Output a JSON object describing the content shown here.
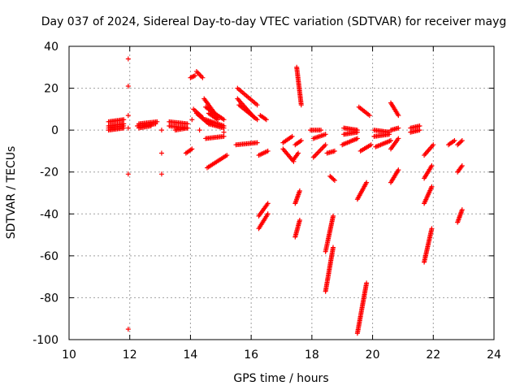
{
  "chart_data": {
    "type": "scatter",
    "title": "Day 037 of 2024, Sidereal Day-to-day VTEC variation (SDTVAR) for receiver mayg",
    "xlabel": "GPS time / hours",
    "ylabel": "SDTVAR / TECUs",
    "xlim": [
      10,
      24
    ],
    "ylim": [
      -100,
      40
    ],
    "xticks": [
      10,
      12,
      14,
      16,
      18,
      20,
      22,
      24
    ],
    "yticks": [
      -100,
      -80,
      -60,
      -40,
      -20,
      0,
      20,
      40
    ],
    "xtick_labels": [
      "10",
      "12",
      "14",
      "16",
      "18",
      "20",
      "22",
      "24"
    ],
    "ytick_labels": [
      "-100",
      "-80",
      "-60",
      "-40",
      "-20",
      "0",
      "20",
      "40"
    ],
    "grid": true,
    "marker": "+",
    "color": "#ff0000",
    "segments": [
      {
        "x0": 11.3,
        "y0": 2,
        "x1": 11.8,
        "y1": 3
      },
      {
        "x0": 11.3,
        "y0": 4,
        "x1": 11.8,
        "y1": 5
      },
      {
        "x0": 11.3,
        "y0": 1,
        "x1": 11.8,
        "y1": 2
      },
      {
        "x0": 11.3,
        "y0": 0,
        "x1": 11.8,
        "y1": 1
      },
      {
        "x0": 12.25,
        "y0": 2,
        "x1": 12.85,
        "y1": 3
      },
      {
        "x0": 12.3,
        "y0": 3,
        "x1": 12.9,
        "y1": 4
      },
      {
        "x0": 12.3,
        "y0": 1,
        "x1": 12.7,
        "y1": 2
      },
      {
        "x0": 13.3,
        "y0": 2,
        "x1": 13.9,
        "y1": 1
      },
      {
        "x0": 13.3,
        "y0": 4,
        "x1": 13.9,
        "y1": 3
      },
      {
        "x0": 13.5,
        "y0": 0,
        "x1": 13.9,
        "y1": 1
      },
      {
        "x0": 13.85,
        "y0": -11,
        "x1": 14.05,
        "y1": -9
      },
      {
        "x0": 14.0,
        "y0": 25,
        "x1": 14.15,
        "y1": 26
      },
      {
        "x0": 14.2,
        "y0": 28,
        "x1": 14.4,
        "y1": 25
      },
      {
        "x0": 14.1,
        "y0": 10,
        "x1": 14.4,
        "y1": 6
      },
      {
        "x0": 14.2,
        "y0": 8,
        "x1": 14.6,
        "y1": 3
      },
      {
        "x0": 14.45,
        "y0": 15,
        "x1": 14.8,
        "y1": 8
      },
      {
        "x0": 14.5,
        "y0": 11,
        "x1": 15.1,
        "y1": 5
      },
      {
        "x0": 14.5,
        "y0": 5,
        "x1": 15.1,
        "y1": 2
      },
      {
        "x0": 14.6,
        "y0": 3,
        "x1": 15.1,
        "y1": 1
      },
      {
        "x0": 14.5,
        "y0": -4,
        "x1": 15.1,
        "y1": -3
      },
      {
        "x0": 14.55,
        "y0": -18,
        "x1": 15.2,
        "y1": -12
      },
      {
        "x0": 14.6,
        "y0": 8,
        "x1": 14.9,
        "y1": 5
      },
      {
        "x0": 15.55,
        "y0": 20,
        "x1": 16.2,
        "y1": 12
      },
      {
        "x0": 15.55,
        "y0": 15,
        "x1": 16.1,
        "y1": 6
      },
      {
        "x0": 15.6,
        "y0": 12,
        "x1": 16.2,
        "y1": 5
      },
      {
        "x0": 15.5,
        "y0": -7,
        "x1": 16.2,
        "y1": -6
      },
      {
        "x0": 16.3,
        "y0": 7,
        "x1": 16.5,
        "y1": 5
      },
      {
        "x0": 16.25,
        "y0": -12,
        "x1": 16.55,
        "y1": -10
      },
      {
        "x0": 16.25,
        "y0": -41,
        "x1": 16.55,
        "y1": -35
      },
      {
        "x0": 16.25,
        "y0": -47,
        "x1": 16.55,
        "y1": -40
      },
      {
        "x0": 17.05,
        "y0": -6,
        "x1": 17.35,
        "y1": -3
      },
      {
        "x0": 17.05,
        "y0": -9,
        "x1": 17.4,
        "y1": -15
      },
      {
        "x0": 17.5,
        "y0": 30,
        "x1": 17.65,
        "y1": 12
      },
      {
        "x0": 17.45,
        "y0": -7,
        "x1": 17.65,
        "y1": -5
      },
      {
        "x0": 17.4,
        "y0": -14,
        "x1": 17.55,
        "y1": -11
      },
      {
        "x0": 17.45,
        "y0": -35,
        "x1": 17.6,
        "y1": -29
      },
      {
        "x0": 17.45,
        "y0": -51,
        "x1": 17.6,
        "y1": -43
      },
      {
        "x0": 17.95,
        "y0": 0,
        "x1": 18.3,
        "y1": 0
      },
      {
        "x0": 18.05,
        "y0": -4,
        "x1": 18.45,
        "y1": -2
      },
      {
        "x0": 18.05,
        "y0": -13,
        "x1": 18.45,
        "y1": -7
      },
      {
        "x0": 18.5,
        "y0": -11,
        "x1": 18.75,
        "y1": -10
      },
      {
        "x0": 18.6,
        "y0": -22,
        "x1": 18.75,
        "y1": -24
      },
      {
        "x0": 18.45,
        "y0": -58,
        "x1": 18.7,
        "y1": -41
      },
      {
        "x0": 18.45,
        "y0": -77,
        "x1": 18.7,
        "y1": -56
      },
      {
        "x0": 19.05,
        "y0": 1,
        "x1": 19.5,
        "y1": 0
      },
      {
        "x0": 19.05,
        "y0": -2,
        "x1": 19.5,
        "y1": -1
      },
      {
        "x0": 19.0,
        "y0": -7,
        "x1": 19.5,
        "y1": -4
      },
      {
        "x0": 19.55,
        "y0": 11,
        "x1": 19.9,
        "y1": 7
      },
      {
        "x0": 19.6,
        "y0": -10,
        "x1": 19.95,
        "y1": -7
      },
      {
        "x0": 19.5,
        "y0": -33,
        "x1": 19.8,
        "y1": -25
      },
      {
        "x0": 19.5,
        "y0": -97,
        "x1": 19.8,
        "y1": -73
      },
      {
        "x0": 20.05,
        "y0": 0,
        "x1": 20.55,
        "y1": -1
      },
      {
        "x0": 20.05,
        "y0": -3,
        "x1": 20.55,
        "y1": -2
      },
      {
        "x0": 20.1,
        "y0": -8,
        "x1": 20.6,
        "y1": -5
      },
      {
        "x0": 20.6,
        "y0": 13,
        "x1": 20.85,
        "y1": 7
      },
      {
        "x0": 20.6,
        "y0": -25,
        "x1": 20.85,
        "y1": -19
      },
      {
        "x0": 20.6,
        "y0": -9,
        "x1": 20.85,
        "y1": -4
      },
      {
        "x0": 20.6,
        "y0": 0,
        "x1": 20.85,
        "y1": 1
      },
      {
        "x0": 21.25,
        "y0": 1,
        "x1": 21.55,
        "y1": 2
      },
      {
        "x0": 21.25,
        "y0": -1,
        "x1": 21.55,
        "y1": 0
      },
      {
        "x0": 21.7,
        "y0": -12,
        "x1": 22.0,
        "y1": -7
      },
      {
        "x0": 21.7,
        "y0": -23,
        "x1": 21.95,
        "y1": -17
      },
      {
        "x0": 21.7,
        "y0": -35,
        "x1": 21.95,
        "y1": -27
      },
      {
        "x0": 21.7,
        "y0": -63,
        "x1": 21.95,
        "y1": -47
      },
      {
        "x0": 22.5,
        "y0": -7,
        "x1": 22.7,
        "y1": -5
      },
      {
        "x0": 22.8,
        "y0": -7,
        "x1": 22.95,
        "y1": -5
      },
      {
        "x0": 22.8,
        "y0": -20,
        "x1": 22.95,
        "y1": -17
      },
      {
        "x0": 22.8,
        "y0": -44,
        "x1": 22.95,
        "y1": -38
      }
    ],
    "points": [
      {
        "x": 11.95,
        "y": 34
      },
      {
        "x": 11.95,
        "y": 21
      },
      {
        "x": 11.95,
        "y": 7
      },
      {
        "x": 11.95,
        "y": 1
      },
      {
        "x": 11.95,
        "y": -21
      },
      {
        "x": 11.95,
        "y": -95
      },
      {
        "x": 13.05,
        "y": -11
      },
      {
        "x": 13.05,
        "y": -21
      },
      {
        "x": 13.05,
        "y": 0
      },
      {
        "x": 14.05,
        "y": 5
      },
      {
        "x": 14.3,
        "y": 0
      },
      {
        "x": 15.1,
        "y": -1
      }
    ]
  }
}
